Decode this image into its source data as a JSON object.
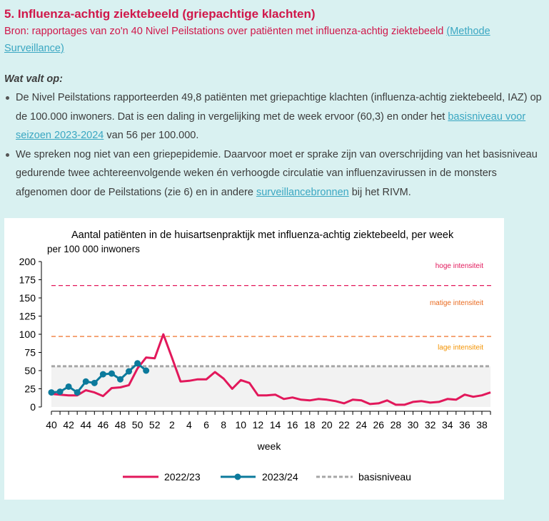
{
  "section": {
    "title": "5. Influenza-achtig ziektebeeld (griepachtige klachten)",
    "source_text": "Bron: rapportages van zo'n 40 Nivel Peilstations over patiënten met influenza-achtig ziektebeeld ",
    "source_link": "(Methode Surveillance)",
    "heading": "Wat valt op:",
    "bullet1_a": "De Nivel Peilstations rapporteerden 49,8 patiënten met griepachtige klachten (influenza-achtig ziektebeeld, IAZ) op de 100.000 inwoners. Dat is een daling in vergelijking met de week ervoor (60,3) en onder het ",
    "bullet1_link": "basisniveau voor seizoen 2023-2024",
    "bullet1_b": " van 56 per 100.000.",
    "bullet2_a": "We spreken nog niet van een griepepidemie. Daarvoor moet er sprake zijn van overschrijding van het basisniveau gedurende twee achtereenvolgende weken én verhoogde circulatie van influenzavirussen in de monsters afgenomen door de Peilstations (zie 6) en in andere ",
    "bullet2_link": "surveillancebronnen",
    "bullet2_b": " bij het RIVM."
  },
  "chart_data": {
    "type": "line",
    "title": "Aantal patiënten in de huisartsenpraktijk met influenza-achtig ziektebeeld, per week",
    "ylabel": "per 100 000 inwoners",
    "xlabel": "week",
    "ylim": [
      0,
      200
    ],
    "yticks": [
      0,
      25,
      50,
      75,
      100,
      125,
      150,
      175,
      200
    ],
    "weeks": [
      40,
      41,
      42,
      43,
      44,
      45,
      46,
      47,
      48,
      49,
      50,
      51,
      52,
      1,
      2,
      3,
      4,
      5,
      6,
      7,
      8,
      9,
      10,
      11,
      12,
      13,
      14,
      15,
      16,
      17,
      18,
      19,
      20,
      21,
      22,
      23,
      24,
      25,
      26,
      27,
      28,
      29,
      30,
      31,
      32,
      33,
      34,
      35,
      36,
      37,
      38,
      39
    ],
    "xtick_labels": [
      "40",
      "42",
      "44",
      "46",
      "48",
      "50",
      "52",
      "2",
      "4",
      "6",
      "8",
      "10",
      "12",
      "14",
      "16",
      "18",
      "20",
      "22",
      "24",
      "26",
      "28",
      "30",
      "32",
      "34",
      "36",
      "38"
    ],
    "thresholds": [
      {
        "name": "basisniveau",
        "value": 56,
        "color": "#a6a6a6"
      },
      {
        "name": "lage intensiteit",
        "value": 56,
        "color": "#f39200"
      },
      {
        "name": "matige intensiteit",
        "value": 97,
        "color": "#f07d3c"
      },
      {
        "name": "hoge intensiteit",
        "value": 167,
        "color": "#e2185b"
      }
    ],
    "zone_labels": {
      "high": "hoge intensiteit",
      "medium": "matige intensiteit",
      "low": "lage intensiteit"
    },
    "series": [
      {
        "name": "2022/23",
        "color": "#e2185b",
        "values": [
          18,
          17,
          16,
          16,
          23,
          20,
          15,
          26,
          27,
          30,
          53,
          68,
          67,
          100,
          68,
          35,
          36,
          38,
          38,
          48,
          39,
          25,
          37,
          33,
          16,
          16,
          17,
          11,
          13,
          10,
          9,
          11,
          10,
          8,
          5,
          10,
          9,
          4,
          5,
          9,
          3,
          3,
          7,
          8,
          6,
          7,
          11,
          10,
          17,
          14,
          16,
          20
        ]
      },
      {
        "name": "2023/24",
        "color": "#0c7a9c",
        "values": [
          20,
          21,
          28,
          20,
          35,
          33,
          45,
          46,
          38,
          49,
          60,
          50
        ]
      }
    ],
    "legend": [
      "2022/23",
      "2023/24",
      "basisniveau"
    ]
  }
}
